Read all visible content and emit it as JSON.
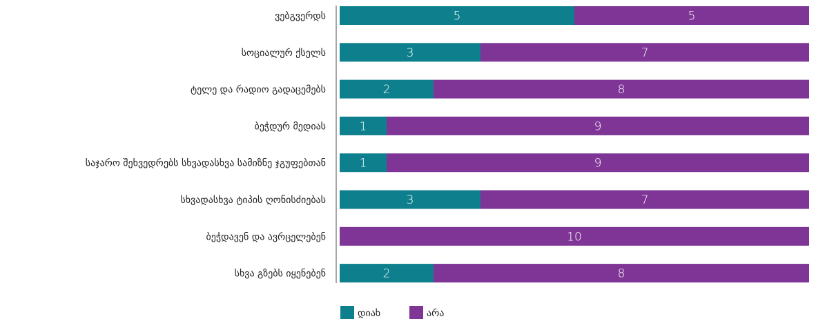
{
  "chart_data": {
    "type": "bar",
    "orientation": "horizontal",
    "stacked": true,
    "categories": [
      "ვებგვერდს",
      "სოციალურ ქსელს",
      "ტელე და რადიო გადაცემებს",
      "ბეჭდურ მედიას",
      "საჯარო შეხვედრებს სხვადასხვა სამიზნე ჯგუფებთან",
      "სხვადასხვა ტიპის ღონისძიებას",
      "ბეჭდავენ და ავრცელებენ",
      "სხვა გზებს იყენებენ"
    ],
    "series": [
      {
        "name": "დიახ",
        "color": "#0e7f8c",
        "values": [
          5,
          3,
          2,
          1,
          1,
          3,
          0,
          2
        ]
      },
      {
        "name": "არა",
        "color": "#7e3595",
        "values": [
          5,
          7,
          8,
          9,
          9,
          7,
          10,
          8
        ]
      }
    ],
    "xlim": [
      0,
      10
    ],
    "grid": false,
    "legend_position": "bottom"
  }
}
